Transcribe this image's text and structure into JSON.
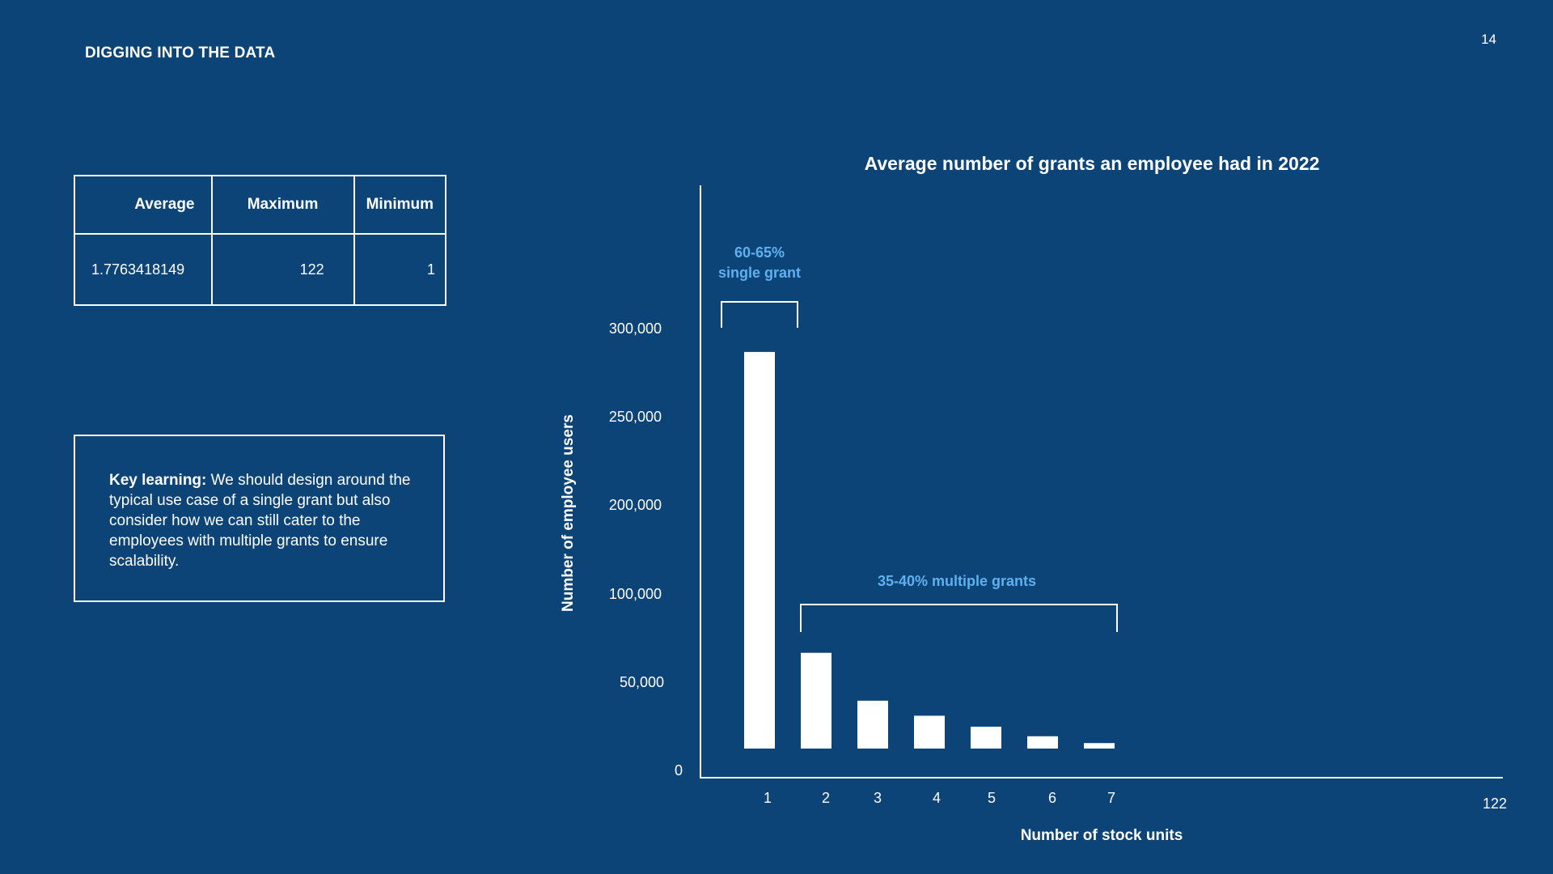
{
  "header": {
    "section_title": "DIGGING INTO THE DATA",
    "page_number": "14"
  },
  "stats_table": {
    "headers": [
      "Average",
      "Maximum",
      "Minimum"
    ],
    "values": [
      "1.7763418149",
      "122",
      "1"
    ]
  },
  "key_learning": {
    "label": "Key learning:",
    "text": " We should design around the typical use case of a single grant but also consider how we can still cater to the employees with multiple grants to ensure scalability."
  },
  "colors": {
    "background": "#0d4478",
    "foreground": "#ffffff",
    "annotation": "#5fb0ef"
  },
  "chart_data": {
    "type": "bar",
    "title": "Average number of grants an employee had in 2022",
    "xlabel": "Number of stock units",
    "ylabel": "Number of employee users",
    "categories": [
      "1",
      "2",
      "3",
      "4",
      "5",
      "6",
      "7"
    ],
    "values": [
      290000,
      70000,
      35000,
      24000,
      16000,
      9000,
      4000
    ],
    "x_end_label": "122",
    "y_ticks": [
      "0",
      "50,000",
      "100,000",
      "200,000",
      "250,000",
      "300,000"
    ],
    "annotations": {
      "single": [
        "60-65%",
        "single grant"
      ],
      "multiple": "35-40% multiple grants"
    },
    "grid": false
  }
}
